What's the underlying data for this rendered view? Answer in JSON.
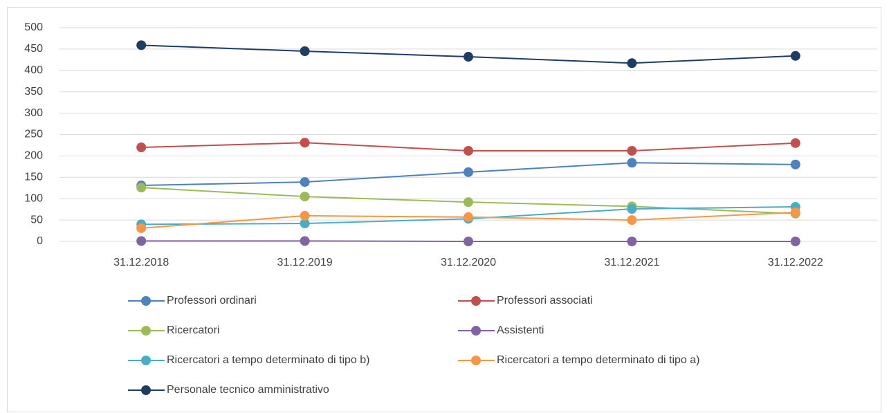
{
  "chart_data": {
    "type": "line",
    "categories": [
      "31.12.2018",
      "31.12.2019",
      "31.12.2020",
      "31.12.2021",
      "31.12.2022"
    ],
    "series": [
      {
        "name": "Professori ordinari",
        "color": "#4f81bd",
        "values": [
          131,
          139,
          162,
          184,
          180
        ]
      },
      {
        "name": "Professori associati",
        "color": "#c0504d",
        "values": [
          220,
          231,
          212,
          212,
          230
        ]
      },
      {
        "name": "Ricercatori",
        "color": "#9bbb59",
        "values": [
          126,
          105,
          92,
          82,
          65
        ]
      },
      {
        "name": "Assistenti",
        "color": "#8064a2",
        "values": [
          1,
          1,
          0,
          0,
          0
        ]
      },
      {
        "name": "Ricercatori a tempo determinato di tipo b)",
        "color": "#4bacc6",
        "values": [
          40,
          42,
          53,
          76,
          81
        ]
      },
      {
        "name": "Ricercatori a tempo determinato di tipo a)",
        "color": "#f79646",
        "values": [
          31,
          60,
          57,
          50,
          68
        ]
      },
      {
        "name": "Personale tecnico amministrativo",
        "color": "#1f3d63",
        "values": [
          459,
          445,
          432,
          417,
          434
        ]
      }
    ],
    "ylim": [
      0,
      500
    ],
    "yticks": [
      0,
      50,
      100,
      150,
      200,
      250,
      300,
      350,
      400,
      450,
      500
    ],
    "grid": true
  }
}
